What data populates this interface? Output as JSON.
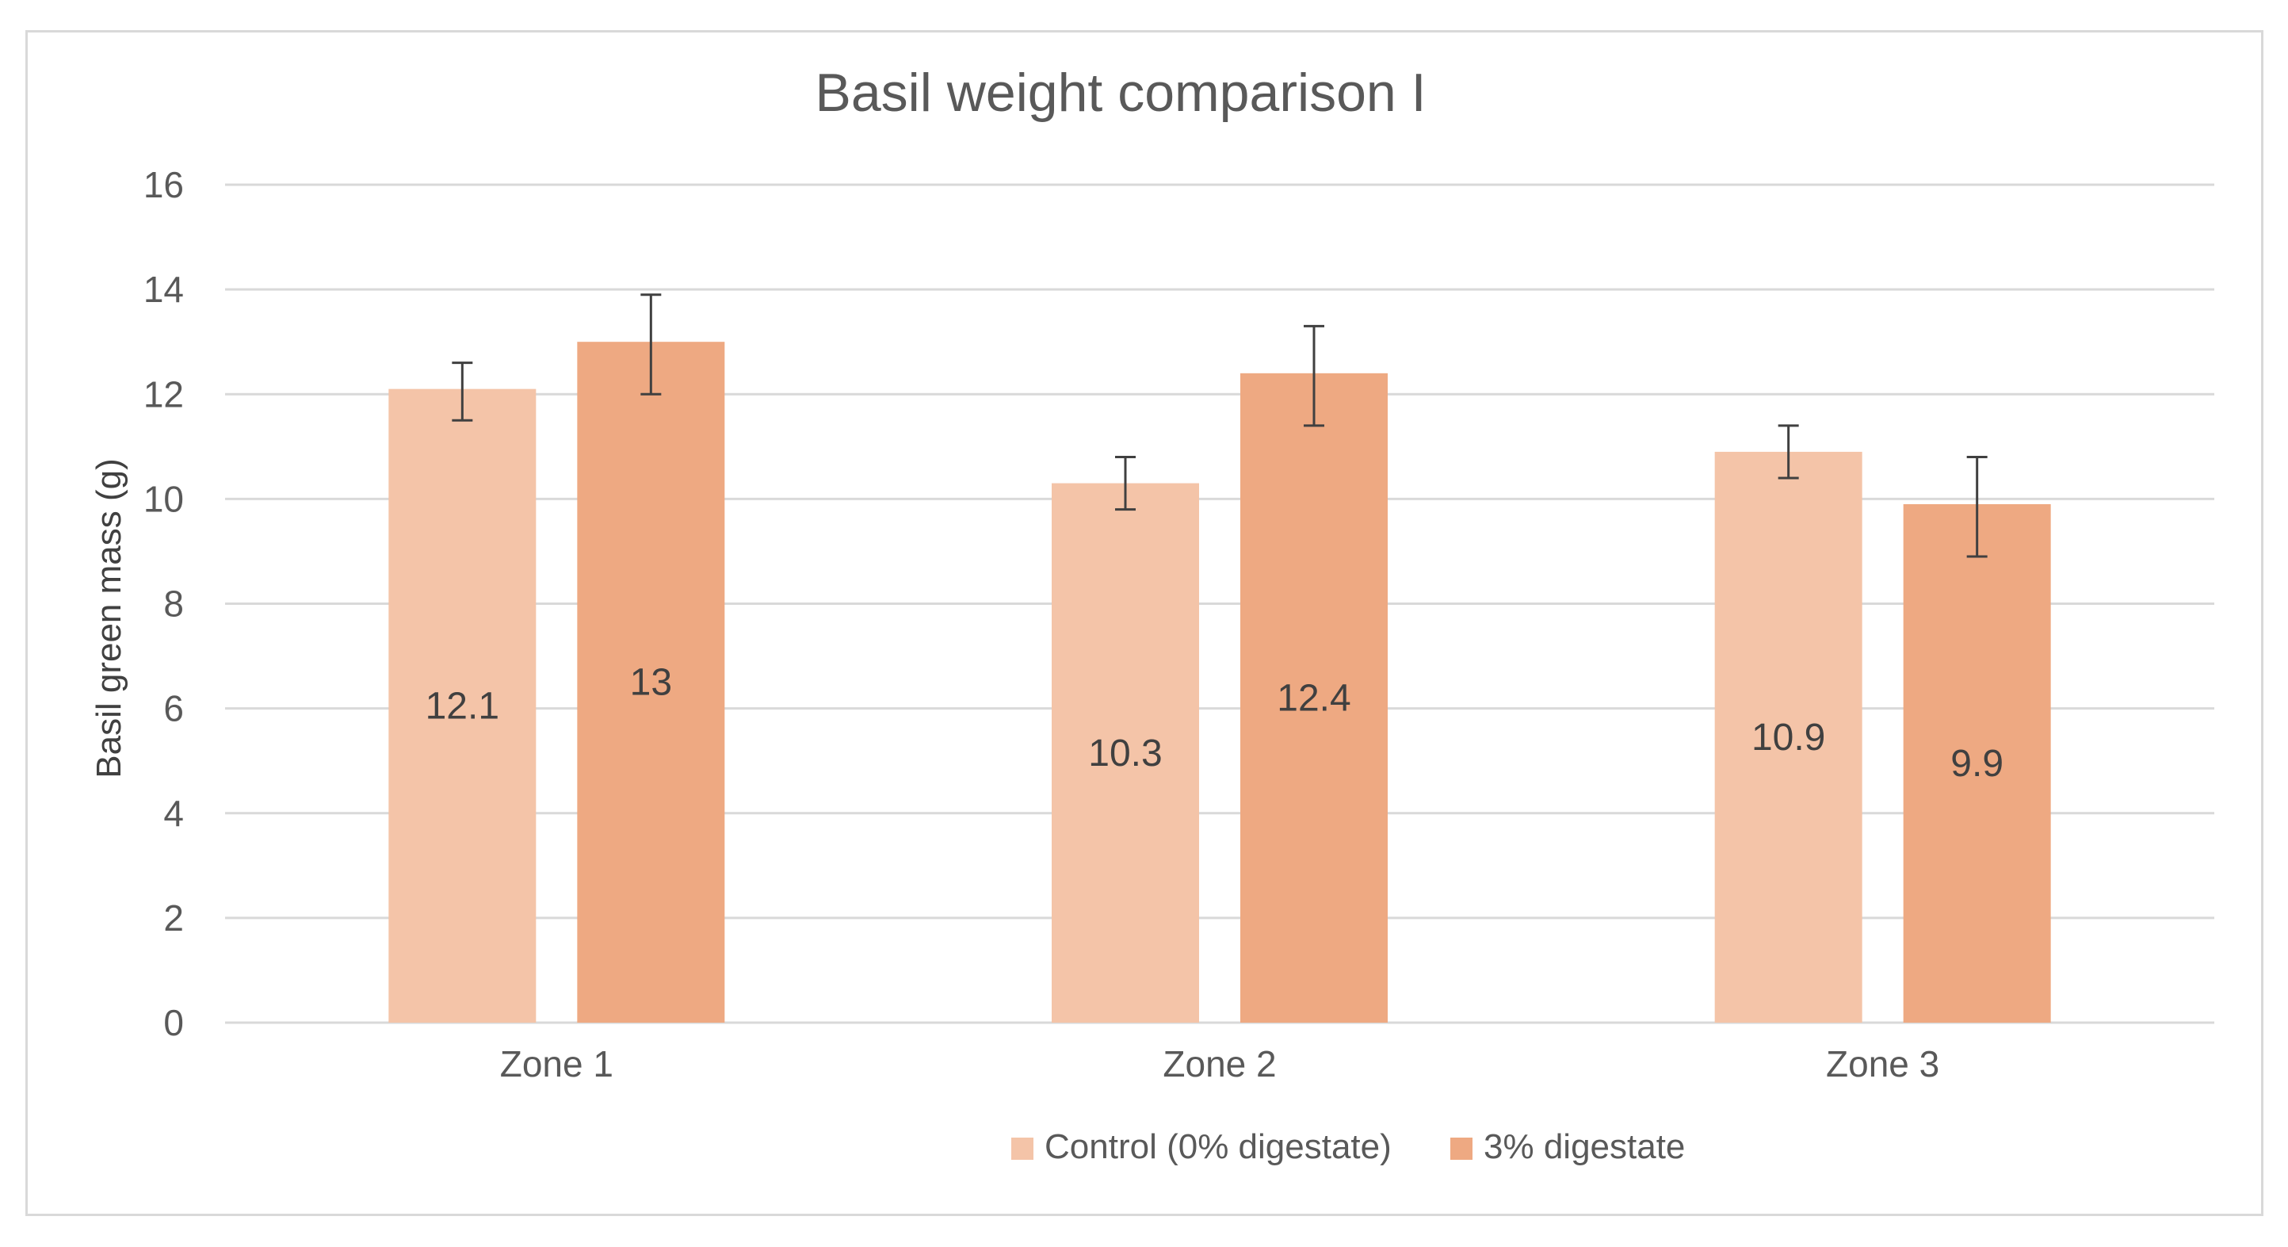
{
  "chart_data": {
    "type": "bar",
    "title": "Basil weight comparison I",
    "xlabel": "",
    "ylabel": "Basil green mass (g)",
    "ylim": [
      0,
      16
    ],
    "yticks": [
      "0",
      "2",
      "4",
      "6",
      "8",
      "10",
      "12",
      "14",
      "16"
    ],
    "grid": true,
    "legend_position": "bottom",
    "categories": [
      "Zone 1",
      "Zone 2",
      "Zone 3"
    ],
    "series": [
      {
        "name": "Control (0% digestate)",
        "color": "#f4c4a8",
        "values": [
          12.1,
          10.3,
          10.9
        ],
        "labels": [
          "12.1",
          "10.3",
          "10.9"
        ],
        "error_low": [
          11.5,
          9.8,
          10.4
        ],
        "error_high": [
          12.6,
          10.8,
          11.4
        ]
      },
      {
        "name": "3% digestate",
        "color": "#eea982",
        "values": [
          13,
          12.4,
          9.9
        ],
        "labels": [
          "13",
          "12.4",
          "9.9"
        ],
        "error_low": [
          12.0,
          11.4,
          8.9
        ],
        "error_high": [
          13.9,
          13.3,
          10.8
        ]
      }
    ]
  }
}
